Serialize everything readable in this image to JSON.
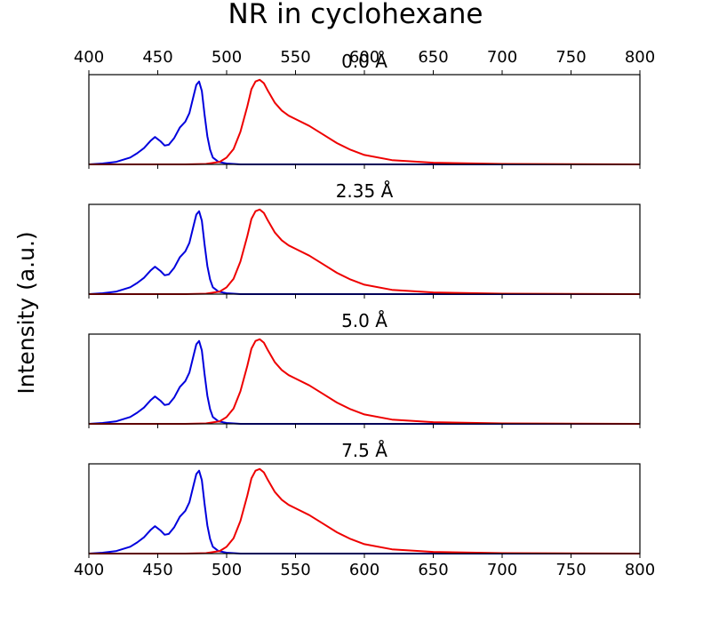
{
  "chart_data": {
    "type": "line",
    "title": "NR in cyclohexane",
    "ylabel": "Intensity (a.u.)",
    "xlim": [
      400,
      800
    ],
    "x_ticks": [
      "400",
      "450",
      "500",
      "550",
      "600",
      "650",
      "700",
      "750",
      "800"
    ],
    "ylim": [
      0,
      1.05
    ],
    "series_colors": {
      "absorption": "#0000dd",
      "emission": "#ee0000"
    },
    "panels": [
      {
        "title": "0.0 Å",
        "blue": {
          "x": [
            400,
            410,
            420,
            430,
            435,
            440,
            445,
            448,
            452,
            455,
            458,
            462,
            466,
            470,
            473,
            476,
            478,
            480,
            482,
            484,
            486,
            488,
            490,
            494,
            500,
            510,
            520,
            800
          ],
          "y": [
            0,
            0.01,
            0.03,
            0.08,
            0.13,
            0.19,
            0.28,
            0.32,
            0.27,
            0.22,
            0.23,
            0.31,
            0.43,
            0.5,
            0.6,
            0.8,
            0.93,
            0.97,
            0.86,
            0.58,
            0.33,
            0.17,
            0.08,
            0.03,
            0.01,
            0,
            0,
            0
          ]
        },
        "red": {
          "x": [
            400,
            470,
            485,
            495,
            500,
            505,
            510,
            515,
            518,
            521,
            524,
            527,
            530,
            535,
            540,
            545,
            550,
            560,
            570,
            580,
            590,
            600,
            620,
            650,
            700,
            800
          ],
          "y": [
            0,
            0,
            0.005,
            0.03,
            0.08,
            0.18,
            0.38,
            0.68,
            0.88,
            0.97,
            0.99,
            0.95,
            0.86,
            0.72,
            0.63,
            0.57,
            0.53,
            0.45,
            0.35,
            0.25,
            0.17,
            0.11,
            0.05,
            0.02,
            0.005,
            0
          ]
        }
      },
      {
        "title": "2.35 Å",
        "blue": {
          "x": [
            400,
            410,
            420,
            430,
            435,
            440,
            445,
            448,
            452,
            455,
            458,
            462,
            466,
            470,
            473,
            476,
            478,
            480,
            482,
            484,
            486,
            488,
            490,
            494,
            500,
            510,
            520,
            800
          ],
          "y": [
            0,
            0.01,
            0.03,
            0.08,
            0.13,
            0.19,
            0.28,
            0.32,
            0.27,
            0.22,
            0.23,
            0.31,
            0.43,
            0.5,
            0.6,
            0.8,
            0.93,
            0.97,
            0.86,
            0.58,
            0.33,
            0.17,
            0.08,
            0.03,
            0.01,
            0,
            0,
            0
          ]
        },
        "red": {
          "x": [
            400,
            470,
            485,
            495,
            500,
            505,
            510,
            515,
            518,
            521,
            524,
            527,
            530,
            535,
            540,
            545,
            550,
            560,
            570,
            580,
            590,
            600,
            620,
            650,
            700,
            800
          ],
          "y": [
            0,
            0,
            0.005,
            0.03,
            0.08,
            0.18,
            0.38,
            0.68,
            0.88,
            0.97,
            0.99,
            0.95,
            0.86,
            0.72,
            0.63,
            0.57,
            0.53,
            0.45,
            0.35,
            0.25,
            0.17,
            0.11,
            0.05,
            0.02,
            0.005,
            0
          ]
        }
      },
      {
        "title": "5.0 Å",
        "blue": {
          "x": [
            400,
            410,
            420,
            430,
            435,
            440,
            445,
            448,
            452,
            455,
            458,
            462,
            466,
            470,
            473,
            476,
            478,
            480,
            482,
            484,
            486,
            488,
            490,
            494,
            500,
            510,
            520,
            800
          ],
          "y": [
            0,
            0.01,
            0.03,
            0.08,
            0.13,
            0.19,
            0.28,
            0.32,
            0.27,
            0.22,
            0.23,
            0.31,
            0.43,
            0.5,
            0.6,
            0.8,
            0.93,
            0.97,
            0.86,
            0.58,
            0.33,
            0.17,
            0.08,
            0.03,
            0.01,
            0,
            0,
            0
          ]
        },
        "red": {
          "x": [
            400,
            470,
            485,
            495,
            500,
            505,
            510,
            515,
            518,
            521,
            524,
            527,
            530,
            535,
            540,
            545,
            550,
            560,
            570,
            580,
            590,
            600,
            620,
            650,
            700,
            800
          ],
          "y": [
            0,
            0,
            0.005,
            0.03,
            0.08,
            0.18,
            0.38,
            0.68,
            0.88,
            0.97,
            0.99,
            0.95,
            0.86,
            0.72,
            0.63,
            0.57,
            0.53,
            0.45,
            0.35,
            0.25,
            0.17,
            0.11,
            0.05,
            0.02,
            0.005,
            0
          ]
        }
      },
      {
        "title": "7.5 Å",
        "blue": {
          "x": [
            400,
            410,
            420,
            430,
            435,
            440,
            445,
            448,
            452,
            455,
            458,
            462,
            466,
            470,
            473,
            476,
            478,
            480,
            482,
            484,
            486,
            488,
            490,
            494,
            500,
            510,
            520,
            800
          ],
          "y": [
            0,
            0.01,
            0.03,
            0.08,
            0.13,
            0.19,
            0.28,
            0.32,
            0.27,
            0.22,
            0.23,
            0.31,
            0.43,
            0.5,
            0.6,
            0.8,
            0.93,
            0.97,
            0.86,
            0.58,
            0.33,
            0.17,
            0.08,
            0.03,
            0.01,
            0,
            0,
            0
          ]
        },
        "red": {
          "x": [
            400,
            470,
            485,
            495,
            500,
            505,
            510,
            515,
            518,
            521,
            524,
            527,
            530,
            535,
            540,
            545,
            550,
            560,
            570,
            580,
            590,
            600,
            620,
            650,
            700,
            800
          ],
          "y": [
            0,
            0,
            0.005,
            0.03,
            0.08,
            0.18,
            0.38,
            0.68,
            0.88,
            0.97,
            0.99,
            0.95,
            0.86,
            0.72,
            0.63,
            0.57,
            0.53,
            0.45,
            0.35,
            0.25,
            0.17,
            0.11,
            0.05,
            0.02,
            0.005,
            0
          ]
        }
      }
    ]
  }
}
